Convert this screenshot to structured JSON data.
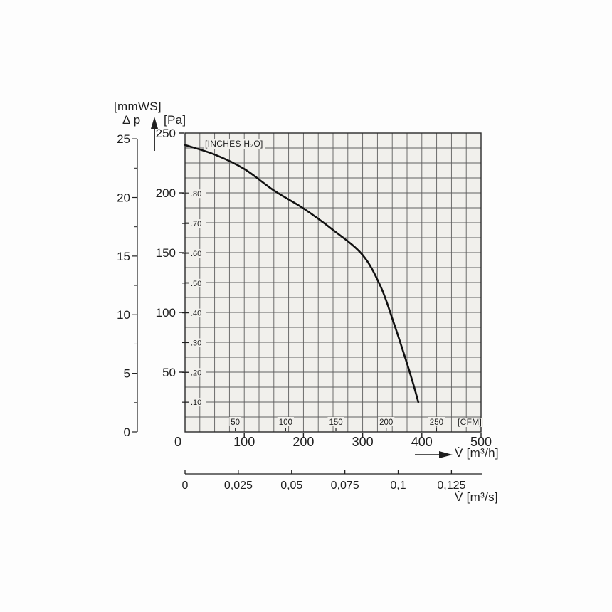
{
  "labels": {
    "mmws_unit": "[mmWS]",
    "delta_p": "Δ p",
    "pa_unit": "[Pa]",
    "inches_unit": "[INCHES H₂O]",
    "cfm_unit": "[CFM]",
    "flow_m3h": "V̇ [m³/h]",
    "flow_m3s": "V̇ [m³/s]"
  },
  "colors": {
    "paper": "#fdfdfd",
    "grid_bg": "#f1f0ec",
    "grid": "#5f5f5f",
    "border": "#2a2a2a",
    "ink": "#1f1f1f",
    "curve": "#111111"
  },
  "chart_data": {
    "type": "line",
    "title": "",
    "description": "Fan static pressure vs. volume flow performance curve on scanned grid paper",
    "grid": "on",
    "x_axis": {
      "title": "V̇ [m³/h]",
      "min": 0,
      "max": 500,
      "major_ticks": [
        0,
        100,
        200,
        300,
        400,
        500
      ],
      "minor_step": 25
    },
    "y_axis": {
      "title": "[Pa]",
      "min": 0,
      "max": 250,
      "major_ticks": [
        250,
        200,
        150,
        100,
        50
      ],
      "minor_step": 12.5
    },
    "y_axis_mmws": {
      "title": "[mmWS]",
      "symbol": "Δ p",
      "ticks": [
        25,
        20,
        15,
        10,
        5,
        0
      ],
      "minor_step": 2.5,
      "pa_per_unit": 9.80665
    },
    "y_axis_inches": {
      "title": "[INCHES H₂O]",
      "tick_labels": [
        ".80",
        ".70",
        ".60",
        ".50",
        ".40",
        ".30",
        ".20",
        ".10"
      ],
      "tick_values": [
        0.8,
        0.7,
        0.6,
        0.5,
        0.4,
        0.3,
        0.2,
        0.1
      ],
      "pa_per_unit": 249.089
    },
    "x_axis_cfm": {
      "title": "[CFM]",
      "ticks": [
        50,
        100,
        150,
        200,
        250
      ],
      "m3h_per_unit": 1.69901
    },
    "x_axis_m3s": {
      "title": "V̇ [m³/s]",
      "tick_labels": [
        "0",
        "0,025",
        "0,05",
        "0,075",
        "0,1",
        "0,125"
      ],
      "tick_values": [
        0,
        0.025,
        0.05,
        0.075,
        0.1,
        0.125
      ],
      "m3h_per_unit": 3600
    },
    "series": [
      {
        "name": "fan-performance-curve",
        "points_m3h_pa": [
          [
            0,
            240
          ],
          [
            50,
            232
          ],
          [
            100,
            220
          ],
          [
            150,
            202
          ],
          [
            200,
            187
          ],
          [
            250,
            169
          ],
          [
            300,
            148
          ],
          [
            330,
            122
          ],
          [
            350,
            95
          ],
          [
            370,
            65
          ],
          [
            385,
            41
          ],
          [
            394,
            25
          ]
        ]
      }
    ]
  }
}
